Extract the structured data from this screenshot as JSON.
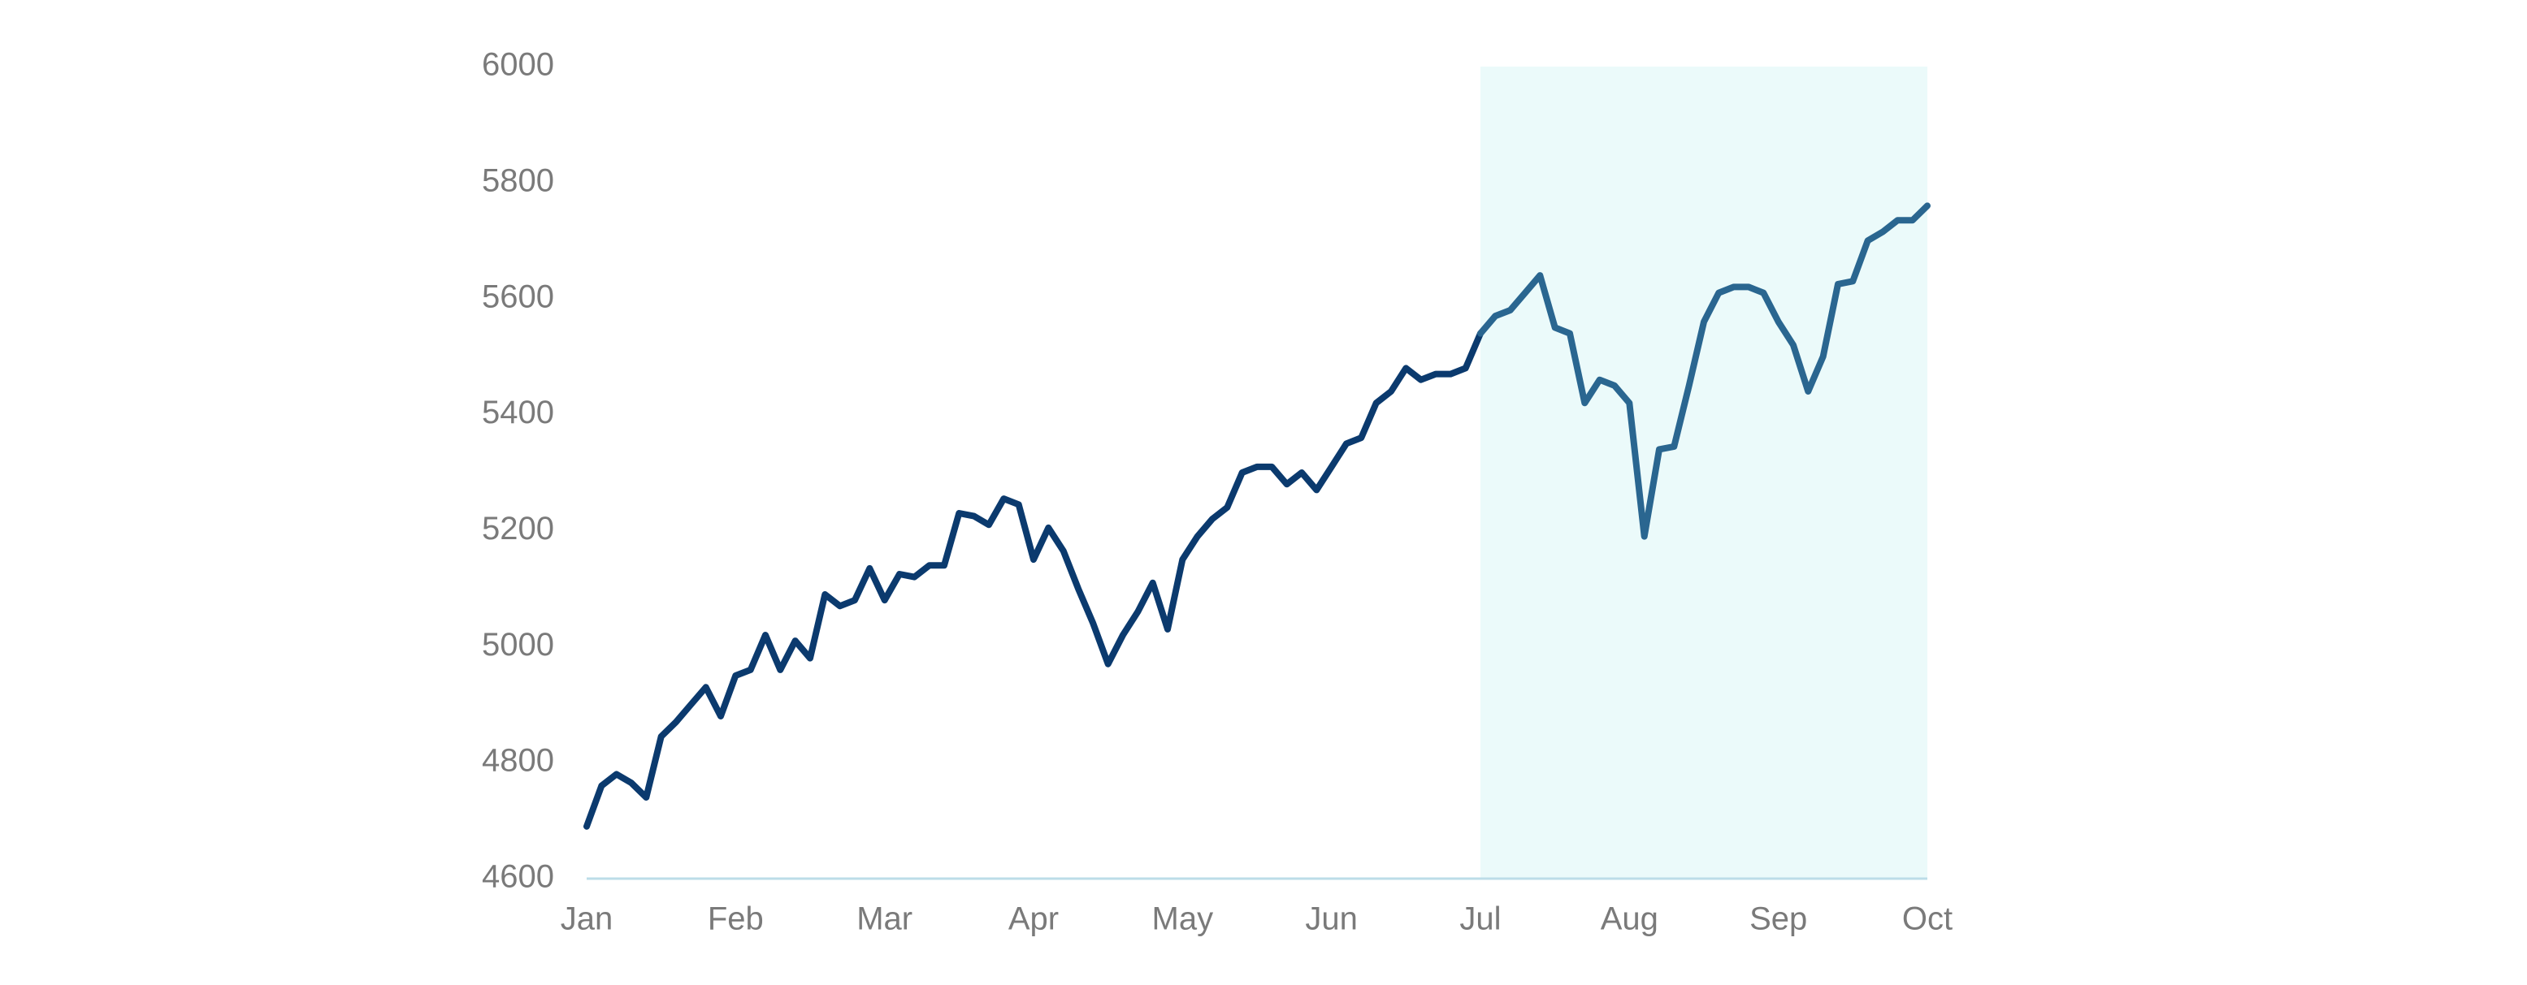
{
  "chart_data": {
    "type": "line",
    "categories": [
      "Jan",
      null,
      null,
      null,
      null,
      null,
      null,
      null,
      null,
      null,
      "Feb",
      null,
      null,
      null,
      null,
      null,
      null,
      null,
      null,
      null,
      "Mar",
      null,
      null,
      null,
      null,
      null,
      null,
      null,
      null,
      null,
      "Apr",
      null,
      null,
      null,
      null,
      null,
      null,
      null,
      null,
      null,
      "May",
      null,
      null,
      null,
      null,
      null,
      null,
      null,
      null,
      null,
      "Jun",
      null,
      null,
      null,
      null,
      null,
      null,
      null,
      null,
      null,
      "Jul",
      null,
      null,
      null,
      null,
      null,
      null,
      null,
      null,
      null,
      "Aug",
      null,
      null,
      null,
      null,
      null,
      null,
      null,
      null,
      null,
      "Sep",
      null,
      null,
      null,
      null,
      null,
      null,
      null,
      null,
      null,
      "Oct"
    ],
    "series": [
      {
        "color": "#0b3a6e",
        "values": [
          4690,
          4760,
          4780,
          4765,
          4740,
          4845,
          4870,
          4900,
          4930,
          4880,
          4950,
          4960,
          5020,
          4960,
          5010,
          4980,
          5090,
          5070,
          5080,
          5135,
          5080,
          5125,
          5120,
          5140,
          5140,
          5230,
          5225,
          5210,
          5255,
          5245,
          5150,
          5205,
          5165,
          5100,
          5040,
          4970,
          5020,
          5060,
          5110,
          5030,
          5150,
          5190,
          5220,
          5240,
          5300,
          5310,
          5310,
          5280,
          5300,
          5270,
          5310,
          5350,
          5360,
          5420,
          5440,
          5480,
          5460,
          5470,
          5470,
          5480,
          5540,
          5570,
          5580,
          5610,
          5640,
          5550,
          5540,
          5420,
          5460,
          5450,
          5420,
          5190,
          5340,
          5345,
          5450,
          5560,
          5610,
          5620,
          5620,
          5610,
          5560,
          5520,
          5440,
          5500,
          5625,
          5630,
          5700,
          5715,
          5735,
          5735,
          5760
        ]
      }
    ],
    "highlight": {
      "from": "Jul",
      "to": "Oct",
      "color": "#ebfafa",
      "line_color": "#2a6690"
    },
    "ylim": [
      4600,
      6000
    ],
    "yticks": [
      4600,
      4800,
      5000,
      5200,
      5400,
      5600,
      5800,
      6000
    ],
    "grid": false
  }
}
